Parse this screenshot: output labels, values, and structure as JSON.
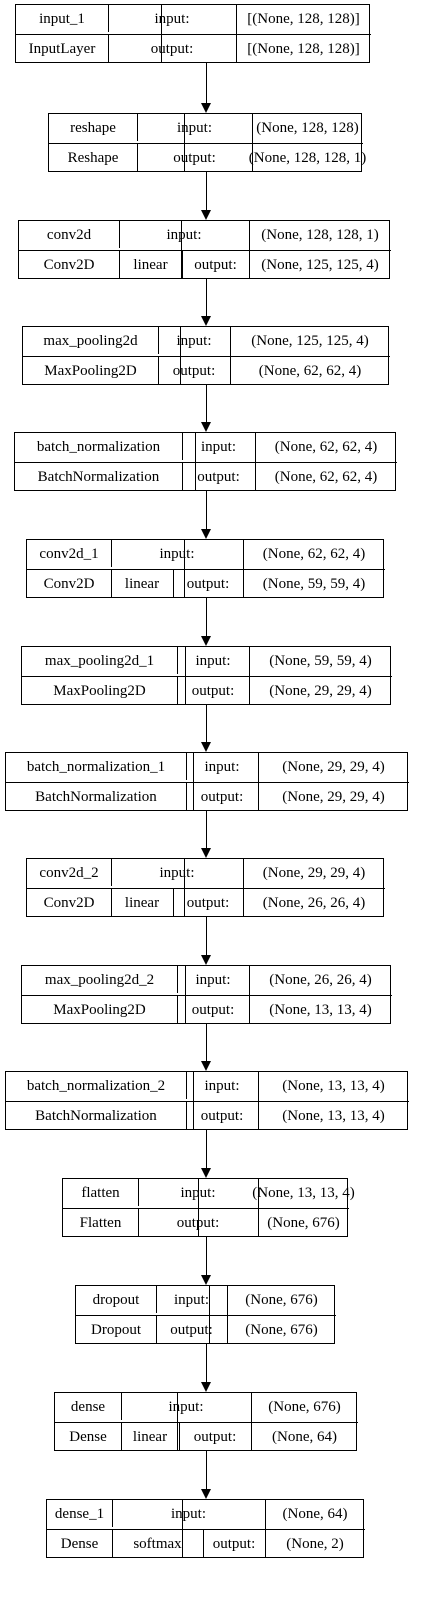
{
  "layers": [
    {
      "name": "input_1",
      "type": "InputLayer",
      "activation": "",
      "input_label": "input:",
      "output_label": "output:",
      "input_shape": "[(None, 128, 128)]",
      "output_shape": "[(None, 128, 128)]"
    },
    {
      "name": "reshape",
      "type": "Reshape",
      "activation": "",
      "input_label": "input:",
      "output_label": "output:",
      "input_shape": "(None, 128, 128)",
      "output_shape": "(None, 128, 128, 1)"
    },
    {
      "name": "conv2d",
      "type": "Conv2D",
      "activation": "linear",
      "input_label": "input:",
      "output_label": "output:",
      "input_shape": "(None, 128, 128, 1)",
      "output_shape": "(None, 125, 125, 4)"
    },
    {
      "name": "max_pooling2d",
      "type": "MaxPooling2D",
      "activation": "",
      "input_label": "input:",
      "output_label": "output:",
      "input_shape": "(None, 125, 125, 4)",
      "output_shape": "(None, 62, 62, 4)"
    },
    {
      "name": "batch_normalization",
      "type": "BatchNormalization",
      "activation": "",
      "input_label": "input:",
      "output_label": "output:",
      "input_shape": "(None, 62, 62, 4)",
      "output_shape": "(None, 62, 62, 4)"
    },
    {
      "name": "conv2d_1",
      "type": "Conv2D",
      "activation": "linear",
      "input_label": "input:",
      "output_label": "output:",
      "input_shape": "(None, 62, 62, 4)",
      "output_shape": "(None, 59, 59, 4)"
    },
    {
      "name": "max_pooling2d_1",
      "type": "MaxPooling2D",
      "activation": "",
      "input_label": "input:",
      "output_label": "output:",
      "input_shape": "(None, 59, 59, 4)",
      "output_shape": "(None, 29, 29, 4)"
    },
    {
      "name": "batch_normalization_1",
      "type": "BatchNormalization",
      "activation": "",
      "input_label": "input:",
      "output_label": "output:",
      "input_shape": "(None, 29, 29, 4)",
      "output_shape": "(None, 29, 29, 4)"
    },
    {
      "name": "conv2d_2",
      "type": "Conv2D",
      "activation": "linear",
      "input_label": "input:",
      "output_label": "output:",
      "input_shape": "(None, 29, 29, 4)",
      "output_shape": "(None, 26, 26, 4)"
    },
    {
      "name": "max_pooling2d_2",
      "type": "MaxPooling2D",
      "activation": "",
      "input_label": "input:",
      "output_label": "output:",
      "input_shape": "(None, 26, 26, 4)",
      "output_shape": "(None, 13, 13, 4)"
    },
    {
      "name": "batch_normalization_2",
      "type": "BatchNormalization",
      "activation": "",
      "input_label": "input:",
      "output_label": "output:",
      "input_shape": "(None, 13, 13, 4)",
      "output_shape": "(None, 13, 13, 4)"
    },
    {
      "name": "flatten",
      "type": "Flatten",
      "activation": "",
      "input_label": "input:",
      "output_label": "output:",
      "input_shape": "(None, 13, 13, 4)",
      "output_shape": "(None, 676)"
    },
    {
      "name": "dropout",
      "type": "Dropout",
      "activation": "",
      "input_label": "input:",
      "output_label": "output:",
      "input_shape": "(None, 676)",
      "output_shape": "(None, 676)"
    },
    {
      "name": "dense",
      "type": "Dense",
      "activation": "linear",
      "input_label": "input:",
      "output_label": "output:",
      "input_shape": "(None, 676)",
      "output_shape": "(None, 64)"
    },
    {
      "name": "dense_1",
      "type": "Dense",
      "activation": "softmax",
      "input_label": "input:",
      "output_label": "output:",
      "input_shape": "(None, 64)",
      "output_shape": "(None, 2)"
    }
  ]
}
